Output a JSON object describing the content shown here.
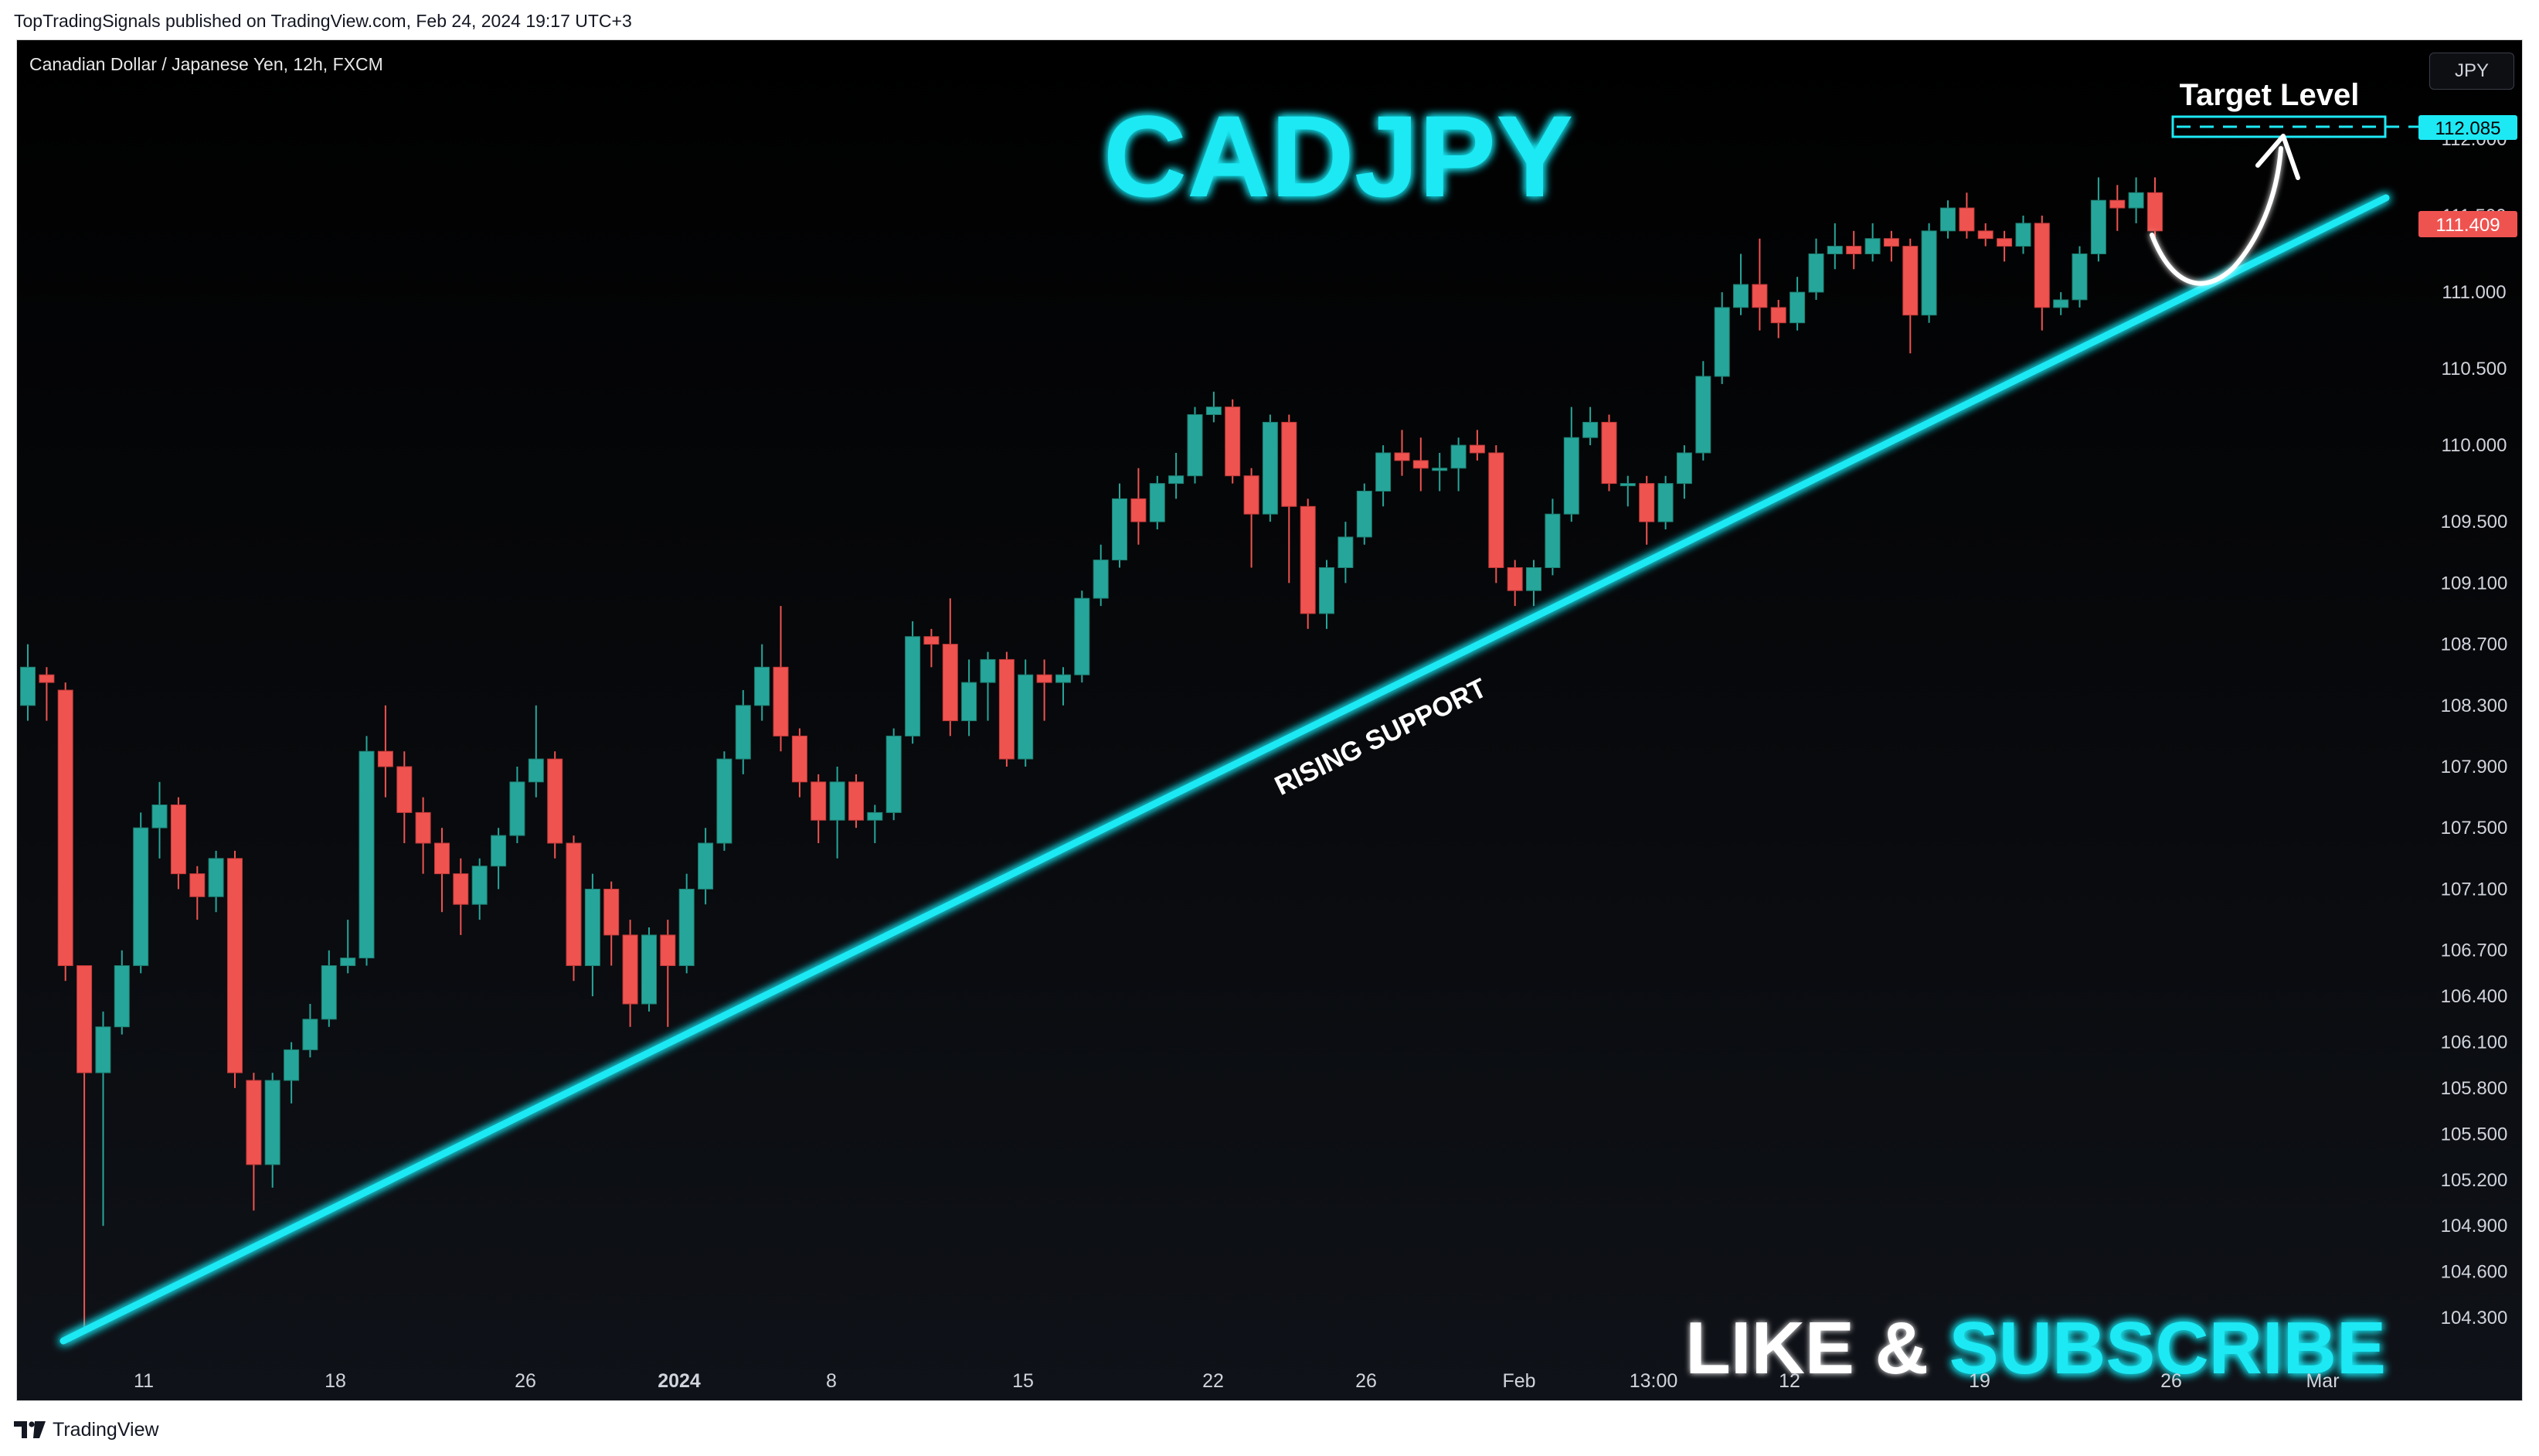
{
  "header": {
    "published_text": "TopTradingSignals published on TradingView.com, Feb 24, 2024 19:17 UTC+3"
  },
  "chart": {
    "symbol_text": "Canadian Dollar / Japanese Yen, 12h, FXCM",
    "currency_button": "JPY",
    "title_overlay": "CADJPY",
    "target_label": "Target Level",
    "support_label": "RISING SUPPORT",
    "cta_like": "LIKE & ",
    "cta_subscribe": "SUBSCRIBE",
    "target_price_badge": "112.085",
    "current_price_badge": "111.409",
    "colors": {
      "background": "#000000",
      "up_candle": "#26a69a",
      "down_candle": "#ef5350",
      "accent_cyan": "#1de9f4",
      "axis_text": "#d1d4dc"
    }
  },
  "chart_data": {
    "type": "candlestick",
    "title": "CADJPY",
    "y_axis_ticks": [
      "112.000",
      "111.500",
      "111.000",
      "110.500",
      "110.000",
      "109.500",
      "109.100",
      "108.700",
      "108.300",
      "107.900",
      "107.500",
      "107.100",
      "106.700",
      "106.400",
      "106.100",
      "105.800",
      "105.500",
      "105.200",
      "104.900",
      "104.600",
      "104.300"
    ],
    "x_axis_ticks": [
      "11",
      "18",
      "26",
      "2024",
      "8",
      "15",
      "22",
      "26",
      "Feb",
      "13:00",
      "12",
      "19",
      "26",
      "Mar"
    ],
    "ylim": [
      104.0,
      112.6
    ],
    "candles": [
      [
        108.3,
        108.55,
        108.7,
        108.2
      ],
      [
        108.5,
        108.45,
        108.55,
        108.2
      ],
      [
        108.4,
        106.6,
        108.45,
        106.5
      ],
      [
        106.6,
        105.9,
        106.6,
        104.2
      ],
      [
        105.9,
        106.2,
        106.3,
        104.9
      ],
      [
        106.2,
        106.6,
        106.7,
        106.15
      ],
      [
        106.6,
        107.5,
        107.6,
        106.55
      ],
      [
        107.5,
        107.65,
        107.8,
        107.3
      ],
      [
        107.65,
        107.2,
        107.7,
        107.1
      ],
      [
        107.2,
        107.05,
        107.25,
        106.9
      ],
      [
        107.05,
        107.3,
        107.35,
        106.95
      ],
      [
        107.3,
        105.9,
        107.35,
        105.8
      ],
      [
        105.85,
        105.3,
        105.9,
        105.0
      ],
      [
        105.3,
        105.85,
        105.9,
        105.15
      ],
      [
        105.85,
        106.05,
        106.1,
        105.7
      ],
      [
        106.05,
        106.25,
        106.35,
        106.0
      ],
      [
        106.25,
        106.6,
        106.7,
        106.2
      ],
      [
        106.6,
        106.65,
        106.9,
        106.55
      ],
      [
        106.65,
        108.0,
        108.1,
        106.6
      ],
      [
        108.0,
        107.9,
        108.3,
        107.7
      ],
      [
        107.9,
        107.6,
        108.0,
        107.4
      ],
      [
        107.6,
        107.4,
        107.7,
        107.2
      ],
      [
        107.4,
        107.2,
        107.5,
        106.95
      ],
      [
        107.2,
        107.0,
        107.3,
        106.8
      ],
      [
        107.0,
        107.25,
        107.3,
        106.9
      ],
      [
        107.25,
        107.45,
        107.5,
        107.1
      ],
      [
        107.45,
        107.8,
        107.9,
        107.4
      ],
      [
        107.8,
        107.95,
        108.3,
        107.7
      ],
      [
        107.95,
        107.4,
        108.0,
        107.3
      ],
      [
        107.4,
        106.6,
        107.45,
        106.5
      ],
      [
        106.6,
        107.1,
        107.2,
        106.4
      ],
      [
        107.1,
        106.8,
        107.15,
        106.6
      ],
      [
        106.8,
        106.35,
        106.9,
        106.2
      ],
      [
        106.35,
        106.8,
        106.85,
        106.3
      ],
      [
        106.8,
        106.6,
        106.9,
        106.2
      ],
      [
        106.6,
        107.1,
        107.2,
        106.55
      ],
      [
        107.1,
        107.4,
        107.5,
        107.0
      ],
      [
        107.4,
        107.95,
        108.0,
        107.35
      ],
      [
        107.95,
        108.3,
        108.4,
        107.85
      ],
      [
        108.3,
        108.55,
        108.7,
        108.2
      ],
      [
        108.55,
        108.1,
        108.95,
        108.0
      ],
      [
        108.1,
        107.8,
        108.15,
        107.7
      ],
      [
        107.8,
        107.55,
        107.85,
        107.4
      ],
      [
        107.55,
        107.8,
        107.9,
        107.3
      ],
      [
        107.8,
        107.55,
        107.85,
        107.5
      ],
      [
        107.55,
        107.6,
        107.65,
        107.4
      ],
      [
        107.6,
        108.1,
        108.15,
        107.55
      ],
      [
        108.1,
        108.75,
        108.85,
        108.05
      ],
      [
        108.75,
        108.7,
        108.8,
        108.55
      ],
      [
        108.7,
        108.2,
        109.0,
        108.1
      ],
      [
        108.2,
        108.45,
        108.6,
        108.1
      ],
      [
        108.45,
        108.6,
        108.65,
        108.2
      ],
      [
        108.6,
        107.95,
        108.65,
        107.9
      ],
      [
        107.95,
        108.5,
        108.6,
        107.9
      ],
      [
        108.5,
        108.45,
        108.6,
        108.2
      ],
      [
        108.45,
        108.5,
        108.55,
        108.3
      ],
      [
        108.5,
        109.0,
        109.05,
        108.45
      ],
      [
        109.0,
        109.25,
        109.35,
        108.95
      ],
      [
        109.25,
        109.65,
        109.75,
        109.2
      ],
      [
        109.65,
        109.5,
        109.85,
        109.35
      ],
      [
        109.5,
        109.75,
        109.8,
        109.45
      ],
      [
        109.75,
        109.8,
        109.95,
        109.65
      ],
      [
        109.8,
        110.2,
        110.25,
        109.75
      ],
      [
        110.2,
        110.25,
        110.35,
        110.15
      ],
      [
        110.25,
        109.8,
        110.3,
        109.75
      ],
      [
        109.8,
        109.55,
        109.85,
        109.2
      ],
      [
        109.55,
        110.15,
        110.2,
        109.5
      ],
      [
        110.15,
        109.6,
        110.2,
        109.1
      ],
      [
        109.6,
        108.9,
        109.65,
        108.8
      ],
      [
        108.9,
        109.2,
        109.25,
        108.8
      ],
      [
        109.2,
        109.4,
        109.5,
        109.1
      ],
      [
        109.4,
        109.7,
        109.75,
        109.35
      ],
      [
        109.7,
        109.95,
        110.0,
        109.6
      ],
      [
        109.95,
        109.9,
        110.1,
        109.8
      ],
      [
        109.9,
        109.85,
        110.05,
        109.7
      ],
      [
        109.85,
        109.85,
        109.95,
        109.7
      ],
      [
        109.85,
        110.0,
        110.05,
        109.7
      ],
      [
        110.0,
        109.95,
        110.1,
        109.9
      ],
      [
        109.95,
        109.2,
        110.0,
        109.1
      ],
      [
        109.2,
        109.05,
        109.25,
        108.95
      ],
      [
        109.05,
        109.2,
        109.25,
        108.95
      ],
      [
        109.2,
        109.55,
        109.65,
        109.15
      ],
      [
        109.55,
        110.05,
        110.25,
        109.5
      ],
      [
        110.05,
        110.15,
        110.25,
        110.0
      ],
      [
        110.15,
        109.75,
        110.2,
        109.7
      ],
      [
        109.75,
        109.75,
        109.8,
        109.6
      ],
      [
        109.75,
        109.5,
        109.8,
        109.35
      ],
      [
        109.5,
        109.75,
        109.8,
        109.45
      ],
      [
        109.75,
        109.95,
        110.0,
        109.65
      ],
      [
        109.95,
        110.45,
        110.55,
        109.9
      ],
      [
        110.45,
        110.9,
        111.0,
        110.4
      ],
      [
        110.9,
        111.05,
        111.25,
        110.85
      ],
      [
        111.05,
        110.9,
        111.35,
        110.75
      ],
      [
        110.9,
        110.8,
        110.95,
        110.7
      ],
      [
        110.8,
        111.0,
        111.1,
        110.75
      ],
      [
        111.0,
        111.25,
        111.35,
        110.95
      ],
      [
        111.25,
        111.3,
        111.45,
        111.15
      ],
      [
        111.3,
        111.25,
        111.4,
        111.15
      ],
      [
        111.25,
        111.35,
        111.45,
        111.2
      ],
      [
        111.35,
        111.3,
        111.4,
        111.2
      ],
      [
        111.3,
        110.85,
        111.35,
        110.6
      ],
      [
        110.85,
        111.4,
        111.45,
        110.8
      ],
      [
        111.4,
        111.55,
        111.6,
        111.35
      ],
      [
        111.55,
        111.4,
        111.65,
        111.35
      ],
      [
        111.4,
        111.35,
        111.45,
        111.3
      ],
      [
        111.35,
        111.3,
        111.4,
        111.2
      ],
      [
        111.3,
        111.45,
        111.5,
        111.25
      ],
      [
        111.45,
        110.9,
        111.5,
        110.75
      ],
      [
        110.9,
        110.95,
        111.0,
        110.85
      ],
      [
        110.95,
        111.25,
        111.3,
        110.9
      ],
      [
        111.25,
        111.6,
        111.75,
        111.2
      ],
      [
        111.6,
        111.55,
        111.7,
        111.4
      ],
      [
        111.55,
        111.65,
        111.75,
        111.45
      ],
      [
        111.65,
        111.4,
        111.75,
        111.35
      ]
    ]
  }
}
